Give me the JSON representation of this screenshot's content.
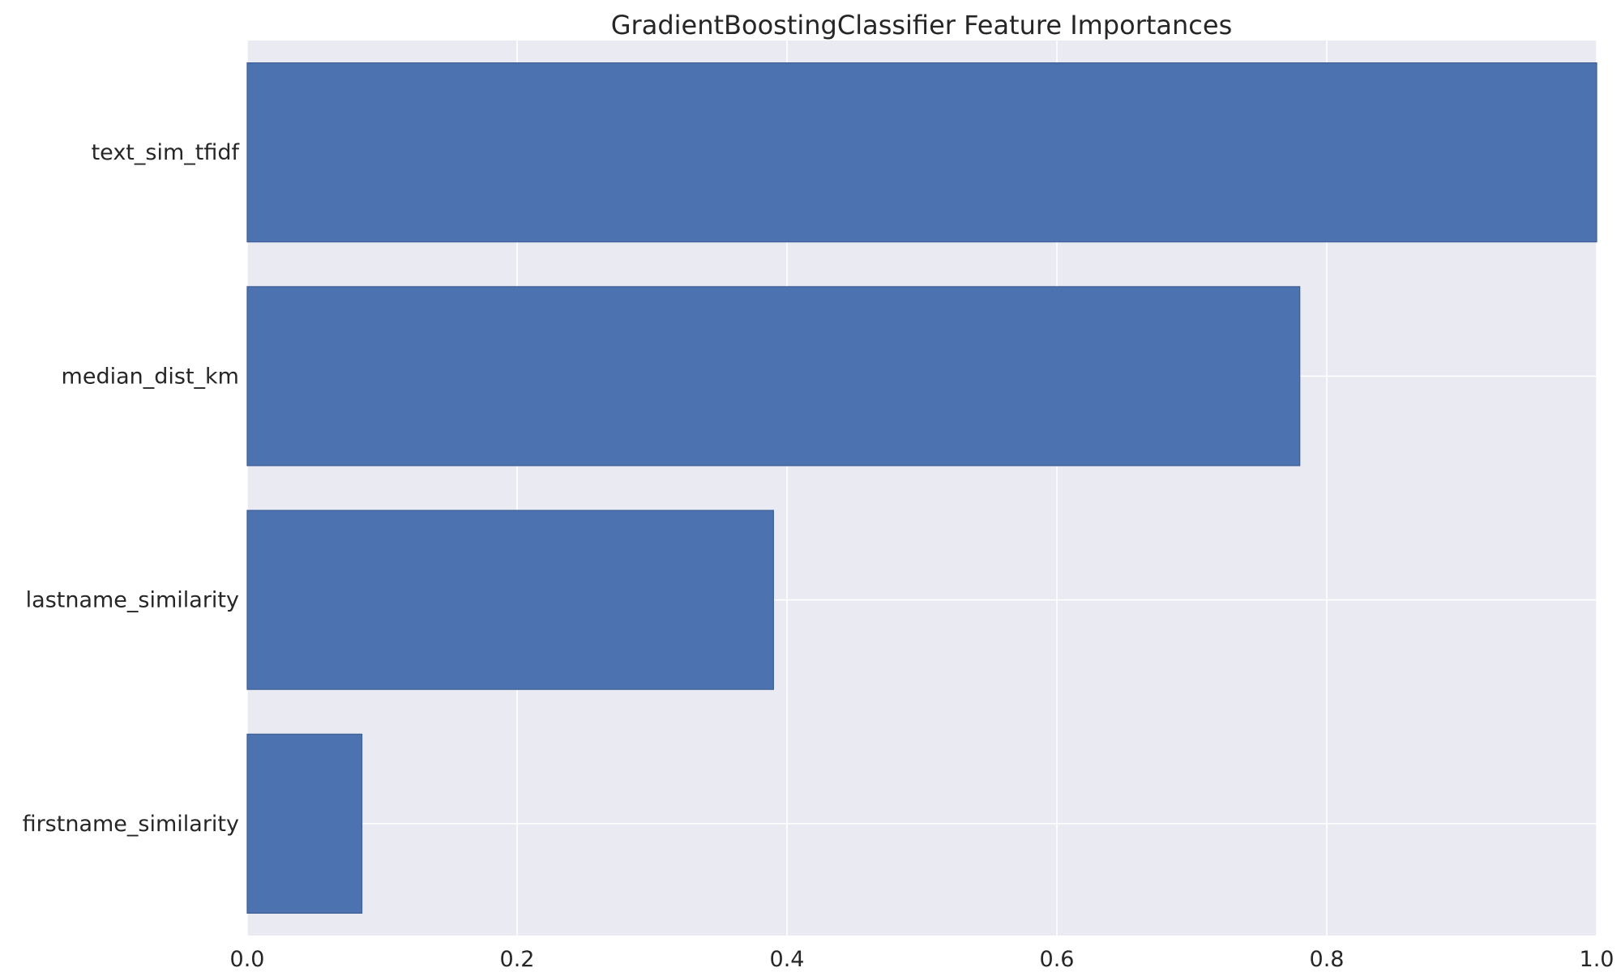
{
  "chart_data": {
    "type": "bar",
    "orientation": "horizontal",
    "title": "GradientBoostingClassifier Feature Importances",
    "xlabel": "",
    "ylabel": "",
    "categories": [
      "text_sim_tfidf",
      "median_dist_km",
      "lastname_similarity",
      "firstname_similarity"
    ],
    "values": [
      1.0,
      0.78,
      0.39,
      0.085
    ],
    "xlim": [
      0.0,
      1.0
    ],
    "xticks": [
      0.0,
      0.2,
      0.4,
      0.6,
      0.8,
      1.0
    ],
    "xtick_labels": [
      "0.0",
      "0.2",
      "0.4",
      "0.6",
      "0.8",
      "1.0"
    ],
    "grid": true,
    "bar_color": "#4c72b0",
    "background_color": "#eaeaf2"
  }
}
